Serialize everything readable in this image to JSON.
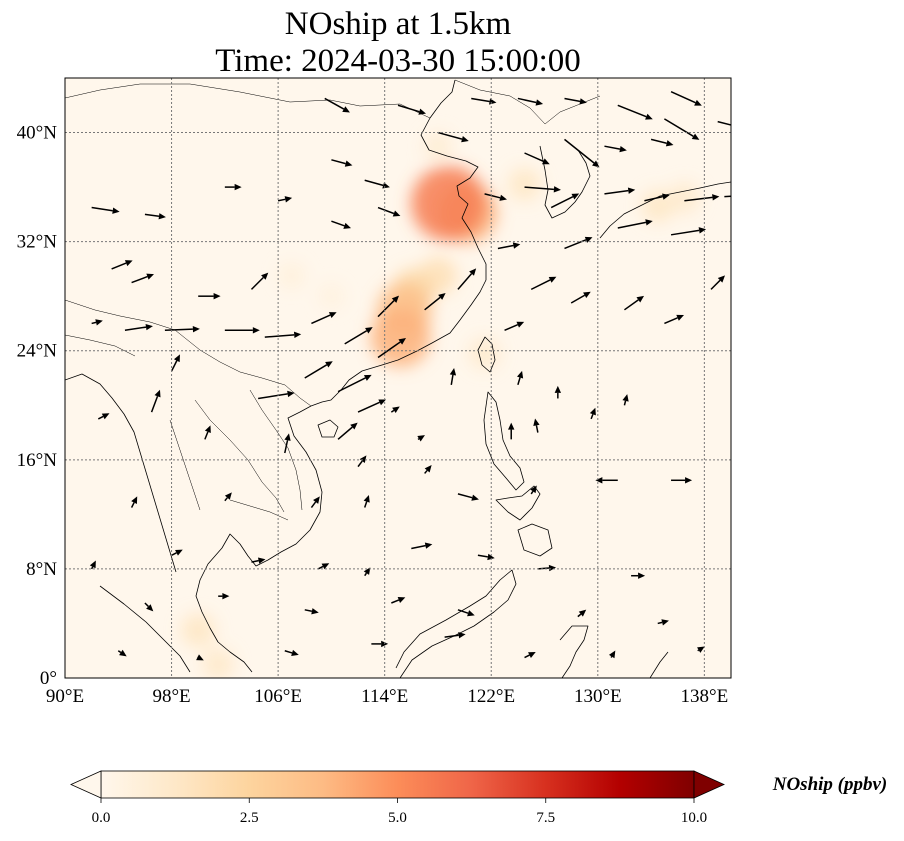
{
  "title": {
    "line1": "NOship at 1.5km",
    "line2": "Time: 2024-03-30 15:00:00"
  },
  "map": {
    "lon_range": [
      90,
      140
    ],
    "lat_range": [
      0,
      44
    ],
    "gridlines": true,
    "coastlines": true,
    "lon_ticks": [
      {
        "value": 90,
        "label": "90°E"
      },
      {
        "value": 98,
        "label": "98°E"
      },
      {
        "value": 106,
        "label": "106°E"
      },
      {
        "value": 114,
        "label": "114°E"
      },
      {
        "value": 122,
        "label": "122°E"
      },
      {
        "value": 130,
        "label": "130°E"
      },
      {
        "value": 138,
        "label": "138°E"
      }
    ],
    "lat_ticks": [
      {
        "value": 0,
        "label": "0°"
      },
      {
        "value": 8,
        "label": "8°N"
      },
      {
        "value": 16,
        "label": "16°N"
      },
      {
        "value": 24,
        "label": "24°N"
      },
      {
        "value": 32,
        "label": "32°N"
      },
      {
        "value": 40,
        "label": "40°N"
      }
    ]
  },
  "colorbar": {
    "label": "NOship (ppbv)",
    "min": 0,
    "max": 10,
    "extend": "both",
    "colormap": "OrRd",
    "ticks": [
      {
        "value": 0,
        "label": "0.0"
      },
      {
        "value": 2.5,
        "label": "2.5"
      },
      {
        "value": 5,
        "label": "5.0"
      },
      {
        "value": 7.5,
        "label": "7.5"
      },
      {
        "value": 10,
        "label": "10.0"
      }
    ]
  },
  "chart_data": {
    "type": "heatmap",
    "variable": "NOship",
    "units": "ppbv",
    "hotspots": [
      {
        "lon": 118.8,
        "lat": 34.8,
        "value": 5.5
      },
      {
        "lon": 120.2,
        "lat": 34.1,
        "value": 4.0
      },
      {
        "lon": 115.5,
        "lat": 27.0,
        "value": 3.5
      },
      {
        "lon": 115.2,
        "lat": 25.0,
        "value": 4.0
      },
      {
        "lon": 116.2,
        "lat": 28.5,
        "value": 2.2
      },
      {
        "lon": 118.0,
        "lat": 29.5,
        "value": 1.8
      },
      {
        "lon": 124.5,
        "lat": 36.2,
        "value": 1.3
      },
      {
        "lon": 134.5,
        "lat": 34.6,
        "value": 1.3
      },
      {
        "lon": 136.5,
        "lat": 35.2,
        "value": 1.1
      },
      {
        "lon": 121.5,
        "lat": 23.8,
        "value": 1.1
      },
      {
        "lon": 118.0,
        "lat": 39.0,
        "value": 0.9
      },
      {
        "lon": 100.0,
        "lat": 3.5,
        "value": 1.4
      },
      {
        "lon": 101.5,
        "lat": 1.0,
        "value": 1.2
      },
      {
        "lon": 107.0,
        "lat": 29.5,
        "value": 0.6
      },
      {
        "lon": 110.0,
        "lat": 28.0,
        "value": 0.5
      }
    ],
    "wind_vectors": [
      {
        "lon": 92.0,
        "lat": 34.5,
        "u": 2.0,
        "v": -0.3
      },
      {
        "lon": 96.0,
        "lat": 34.0,
        "u": 1.5,
        "v": -0.2
      },
      {
        "lon": 93.5,
        "lat": 30.0,
        "u": 1.5,
        "v": 0.6
      },
      {
        "lon": 95.0,
        "lat": 29.0,
        "u": 1.6,
        "v": 0.6
      },
      {
        "lon": 92.0,
        "lat": 26.0,
        "u": 0.8,
        "v": 0.2
      },
      {
        "lon": 94.5,
        "lat": 25.5,
        "u": 2.0,
        "v": 0.3
      },
      {
        "lon": 97.5,
        "lat": 25.5,
        "u": 2.5,
        "v": 0.1
      },
      {
        "lon": 102.0,
        "lat": 25.5,
        "u": 2.5,
        "v": 0.0
      },
      {
        "lon": 105.0,
        "lat": 25.0,
        "u": 2.6,
        "v": 0.2
      },
      {
        "lon": 100.0,
        "lat": 28.0,
        "u": 1.6,
        "v": 0.0
      },
      {
        "lon": 104.0,
        "lat": 28.5,
        "u": 1.2,
        "v": 1.2
      },
      {
        "lon": 108.5,
        "lat": 26.0,
        "u": 1.8,
        "v": 0.8
      },
      {
        "lon": 111.0,
        "lat": 24.5,
        "u": 2.0,
        "v": 1.2
      },
      {
        "lon": 113.5,
        "lat": 26.5,
        "u": 1.5,
        "v": 1.5
      },
      {
        "lon": 113.5,
        "lat": 23.5,
        "u": 2.0,
        "v": 1.4
      },
      {
        "lon": 108.0,
        "lat": 22.0,
        "u": 2.0,
        "v": 1.2
      },
      {
        "lon": 104.5,
        "lat": 20.5,
        "u": 2.6,
        "v": 0.4
      },
      {
        "lon": 110.5,
        "lat": 21.0,
        "u": 2.4,
        "v": 1.2
      },
      {
        "lon": 112.0,
        "lat": 19.5,
        "u": 2.0,
        "v": 0.9
      },
      {
        "lon": 110.5,
        "lat": 17.5,
        "u": 1.4,
        "v": 1.2
      },
      {
        "lon": 102.0,
        "lat": 36.0,
        "u": 1.2,
        "v": 0.0
      },
      {
        "lon": 106.0,
        "lat": 35.0,
        "u": 1.0,
        "v": 0.2
      },
      {
        "lon": 110.0,
        "lat": 38.0,
        "u": 1.5,
        "v": -0.4
      },
      {
        "lon": 112.5,
        "lat": 36.5,
        "u": 1.8,
        "v": -0.5
      },
      {
        "lon": 113.5,
        "lat": 34.5,
        "u": 1.6,
        "v": -0.6
      },
      {
        "lon": 110.0,
        "lat": 33.5,
        "u": 1.4,
        "v": -0.5
      },
      {
        "lon": 109.5,
        "lat": 42.5,
        "u": 1.8,
        "v": -1.0
      },
      {
        "lon": 115.0,
        "lat": 42.0,
        "u": 2.0,
        "v": -0.6
      },
      {
        "lon": 120.5,
        "lat": 42.5,
        "u": 1.8,
        "v": -0.3
      },
      {
        "lon": 124.0,
        "lat": 42.5,
        "u": 1.8,
        "v": -0.4
      },
      {
        "lon": 127.5,
        "lat": 42.5,
        "u": 1.6,
        "v": -0.3
      },
      {
        "lon": 131.5,
        "lat": 42.0,
        "u": 2.5,
        "v": -1.0
      },
      {
        "lon": 135.0,
        "lat": 41.0,
        "u": 2.5,
        "v": -1.5
      },
      {
        "lon": 135.5,
        "lat": 43.0,
        "u": 2.2,
        "v": -1.0
      },
      {
        "lon": 139.0,
        "lat": 40.8,
        "u": 2.0,
        "v": -0.5
      },
      {
        "lon": 118.0,
        "lat": 40.0,
        "u": 2.2,
        "v": -0.6
      },
      {
        "lon": 124.5,
        "lat": 38.5,
        "u": 1.8,
        "v": -0.8
      },
      {
        "lon": 127.5,
        "lat": 39.5,
        "u": 2.5,
        "v": -2.0
      },
      {
        "lon": 130.5,
        "lat": 39.0,
        "u": 1.6,
        "v": -0.3
      },
      {
        "lon": 134.0,
        "lat": 39.5,
        "u": 1.6,
        "v": -0.4
      },
      {
        "lon": 121.5,
        "lat": 35.5,
        "u": 1.6,
        "v": -0.4
      },
      {
        "lon": 124.5,
        "lat": 36.0,
        "u": 2.6,
        "v": -0.2
      },
      {
        "lon": 126.5,
        "lat": 34.5,
        "u": 2.0,
        "v": 1.0
      },
      {
        "lon": 130.5,
        "lat": 35.5,
        "u": 2.2,
        "v": 0.3
      },
      {
        "lon": 133.5,
        "lat": 35.0,
        "u": 1.8,
        "v": 0.4
      },
      {
        "lon": 136.5,
        "lat": 35.0,
        "u": 2.5,
        "v": 0.3
      },
      {
        "lon": 139.5,
        "lat": 35.3,
        "u": 1.6,
        "v": 0.1
      },
      {
        "lon": 127.5,
        "lat": 31.5,
        "u": 2.0,
        "v": 0.8
      },
      {
        "lon": 131.5,
        "lat": 33.0,
        "u": 2.5,
        "v": 0.5
      },
      {
        "lon": 135.5,
        "lat": 32.5,
        "u": 2.5,
        "v": 0.4
      },
      {
        "lon": 122.5,
        "lat": 31.5,
        "u": 1.6,
        "v": 0.3
      },
      {
        "lon": 125.0,
        "lat": 28.5,
        "u": 1.8,
        "v": 0.9
      },
      {
        "lon": 128.0,
        "lat": 27.5,
        "u": 1.4,
        "v": 0.8
      },
      {
        "lon": 132.0,
        "lat": 27.0,
        "u": 1.4,
        "v": 1.0
      },
      {
        "lon": 135.0,
        "lat": 26.0,
        "u": 1.4,
        "v": 0.6
      },
      {
        "lon": 138.5,
        "lat": 28.5,
        "u": 1.0,
        "v": 1.0
      },
      {
        "lon": 117.0,
        "lat": 27.0,
        "u": 1.5,
        "v": 1.2
      },
      {
        "lon": 119.5,
        "lat": 28.5,
        "u": 1.3,
        "v": 1.5
      },
      {
        "lon": 123.0,
        "lat": 25.5,
        "u": 1.4,
        "v": 0.6
      },
      {
        "lon": 119.0,
        "lat": 21.5,
        "u": 0.2,
        "v": 1.2
      },
      {
        "lon": 124.0,
        "lat": 21.5,
        "u": 0.3,
        "v": 1.0
      },
      {
        "lon": 127.0,
        "lat": 20.5,
        "u": 0.0,
        "v": 0.9
      },
      {
        "lon": 132.0,
        "lat": 20.0,
        "u": 0.2,
        "v": 0.8
      },
      {
        "lon": 114.5,
        "lat": 19.5,
        "u": 0.6,
        "v": 0.4
      },
      {
        "lon": 116.5,
        "lat": 17.5,
        "u": 0.5,
        "v": 0.3
      },
      {
        "lon": 123.5,
        "lat": 17.5,
        "u": 0.0,
        "v": 1.2
      },
      {
        "lon": 125.5,
        "lat": 18.0,
        "u": -0.2,
        "v": 1.0
      },
      {
        "lon": 129.5,
        "lat": 19.0,
        "u": 0.3,
        "v": 0.8
      },
      {
        "lon": 106.5,
        "lat": 16.5,
        "u": 0.3,
        "v": 1.4
      },
      {
        "lon": 100.5,
        "lat": 17.5,
        "u": 0.4,
        "v": 1.0
      },
      {
        "lon": 96.5,
        "lat": 19.5,
        "u": 0.6,
        "v": 1.6
      },
      {
        "lon": 92.5,
        "lat": 19.0,
        "u": 0.8,
        "v": 0.4
      },
      {
        "lon": 98.0,
        "lat": 22.5,
        "u": 0.6,
        "v": 1.2
      },
      {
        "lon": 112.0,
        "lat": 15.5,
        "u": 0.6,
        "v": 0.8
      },
      {
        "lon": 117.0,
        "lat": 15.0,
        "u": 0.5,
        "v": 0.6
      },
      {
        "lon": 112.5,
        "lat": 12.5,
        "u": 0.3,
        "v": 0.9
      },
      {
        "lon": 108.5,
        "lat": 12.5,
        "u": 0.6,
        "v": 0.8
      },
      {
        "lon": 119.5,
        "lat": 13.5,
        "u": 1.5,
        "v": -0.4
      },
      {
        "lon": 125.0,
        "lat": 13.5,
        "u": 0.4,
        "v": 0.6
      },
      {
        "lon": 131.5,
        "lat": 14.5,
        "u": -1.6,
        "v": 0.0
      },
      {
        "lon": 135.5,
        "lat": 14.5,
        "u": 1.5,
        "v": 0.0
      },
      {
        "lon": 95.0,
        "lat": 12.5,
        "u": 0.4,
        "v": 0.8
      },
      {
        "lon": 102.0,
        "lat": 13.0,
        "u": 0.5,
        "v": 0.6
      },
      {
        "lon": 116.0,
        "lat": 9.5,
        "u": 1.5,
        "v": 0.3
      },
      {
        "lon": 121.0,
        "lat": 9.0,
        "u": 1.2,
        "v": -0.2
      },
      {
        "lon": 125.5,
        "lat": 8.0,
        "u": 1.3,
        "v": 0.1
      },
      {
        "lon": 132.5,
        "lat": 7.5,
        "u": 1.0,
        "v": 0.0
      },
      {
        "lon": 98.0,
        "lat": 9.0,
        "u": 0.8,
        "v": 0.4
      },
      {
        "lon": 104.0,
        "lat": 8.5,
        "u": 1.0,
        "v": 0.2
      },
      {
        "lon": 109.0,
        "lat": 8.0,
        "u": 0.8,
        "v": 0.4
      },
      {
        "lon": 112.5,
        "lat": 7.5,
        "u": 0.4,
        "v": 0.6
      },
      {
        "lon": 92.0,
        "lat": 8.0,
        "u": 0.3,
        "v": 0.6
      },
      {
        "lon": 96.0,
        "lat": 5.5,
        "u": 0.6,
        "v": -0.6
      },
      {
        "lon": 101.5,
        "lat": 6.0,
        "u": 0.8,
        "v": 0.0
      },
      {
        "lon": 108.0,
        "lat": 5.0,
        "u": 1.0,
        "v": -0.2
      },
      {
        "lon": 114.5,
        "lat": 5.5,
        "u": 1.0,
        "v": 0.4
      },
      {
        "lon": 119.5,
        "lat": 5.0,
        "u": 1.2,
        "v": -0.4
      },
      {
        "lon": 128.5,
        "lat": 4.5,
        "u": 0.6,
        "v": 0.5
      },
      {
        "lon": 134.5,
        "lat": 4.0,
        "u": 0.8,
        "v": 0.2
      },
      {
        "lon": 94.0,
        "lat": 2.0,
        "u": 0.6,
        "v": -0.4
      },
      {
        "lon": 100.0,
        "lat": 1.5,
        "u": 0.4,
        "v": -0.2
      },
      {
        "lon": 106.5,
        "lat": 2.0,
        "u": 1.0,
        "v": -0.3
      },
      {
        "lon": 113.0,
        "lat": 2.5,
        "u": 1.2,
        "v": 0.0
      },
      {
        "lon": 118.5,
        "lat": 3.0,
        "u": 1.5,
        "v": 0.2
      },
      {
        "lon": 124.5,
        "lat": 1.5,
        "u": 0.8,
        "v": 0.4
      },
      {
        "lon": 131.0,
        "lat": 1.5,
        "u": 0.3,
        "v": 0.5
      },
      {
        "lon": 137.5,
        "lat": 2.0,
        "u": 0.5,
        "v": 0.3
      }
    ]
  }
}
